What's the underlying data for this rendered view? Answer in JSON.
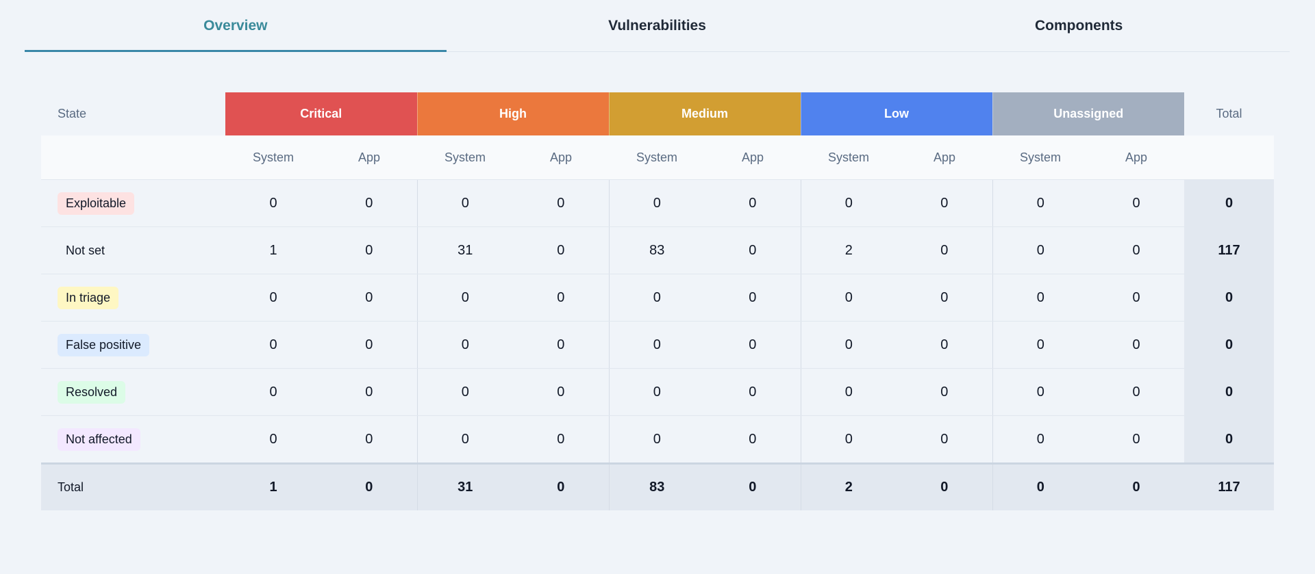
{
  "tabs": [
    {
      "label": "Overview",
      "active": true
    },
    {
      "label": "Vulnerabilities",
      "active": false
    },
    {
      "label": "Components",
      "active": false
    }
  ],
  "table": {
    "state_header": "State",
    "total_header": "Total",
    "severities": [
      {
        "label": "Critical",
        "color": "#e05252"
      },
      {
        "label": "High",
        "color": "#eb783d"
      },
      {
        "label": "Medium",
        "color": "#d29e32"
      },
      {
        "label": "Low",
        "color": "#5082ee"
      },
      {
        "label": "Unassigned",
        "color": "#a3afc0"
      }
    ],
    "sub_labels": {
      "system": "System",
      "app": "App"
    },
    "rows": [
      {
        "state": "Exploitable",
        "badge_color": "#fde2e2",
        "values": [
          "0",
          "0",
          "0",
          "0",
          "0",
          "0",
          "0",
          "0",
          "0",
          "0"
        ],
        "total": "0"
      },
      {
        "state": "Not set",
        "badge_color": "transparent",
        "values": [
          "1",
          "0",
          "31",
          "0",
          "83",
          "0",
          "2",
          "0",
          "0",
          "0"
        ],
        "total": "117"
      },
      {
        "state": "In triage",
        "badge_color": "#fef7c3",
        "values": [
          "0",
          "0",
          "0",
          "0",
          "0",
          "0",
          "0",
          "0",
          "0",
          "0"
        ],
        "total": "0"
      },
      {
        "state": "False positive",
        "badge_color": "#dbeafe",
        "values": [
          "0",
          "0",
          "0",
          "0",
          "0",
          "0",
          "0",
          "0",
          "0",
          "0"
        ],
        "total": "0"
      },
      {
        "state": "Resolved",
        "badge_color": "#dcfce7",
        "values": [
          "0",
          "0",
          "0",
          "0",
          "0",
          "0",
          "0",
          "0",
          "0",
          "0"
        ],
        "total": "0"
      },
      {
        "state": "Not affected",
        "badge_color": "#f3e8ff",
        "values": [
          "0",
          "0",
          "0",
          "0",
          "0",
          "0",
          "0",
          "0",
          "0",
          "0"
        ],
        "total": "0"
      }
    ],
    "total_row": {
      "label": "Total",
      "values": [
        "1",
        "0",
        "31",
        "0",
        "83",
        "0",
        "2",
        "0",
        "0",
        "0"
      ],
      "total": "117"
    }
  }
}
